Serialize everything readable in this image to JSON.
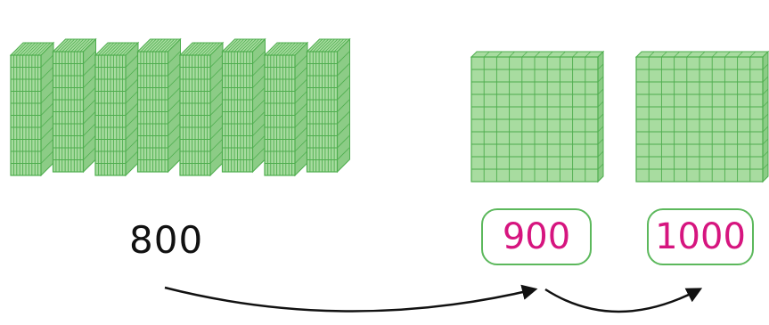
{
  "diagram": {
    "start_value": "800",
    "steps": [
      {
        "value": "900"
      },
      {
        "value": "1000"
      }
    ],
    "hundreds_blocks_in_stack": 8,
    "colors": {
      "block_fill": "#a8dca0",
      "block_side": "#8ccc86",
      "block_grid": "#4ead4e",
      "box_border": "#5cb85c",
      "step_text": "#d6157f",
      "start_text": "#111111",
      "arrow": "#111111"
    },
    "icons": {
      "hundred_block": "hundreds-base-ten-block-icon",
      "arrow": "curved-arrow-icon"
    }
  }
}
